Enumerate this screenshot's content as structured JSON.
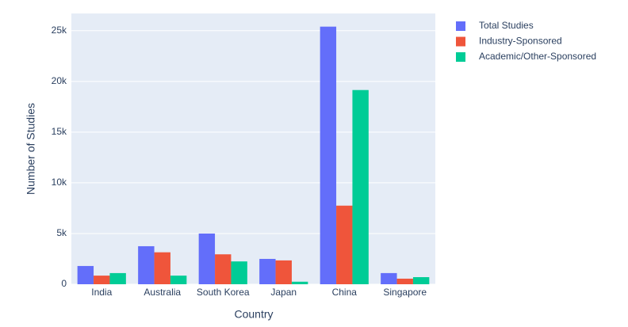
{
  "chart_data": {
    "type": "bar",
    "x_label": "Country",
    "y_label": "Number of Studies",
    "categories": [
      "India",
      "Australia",
      "South Korea",
      "Japan",
      "China",
      "Singapore"
    ],
    "series": [
      {
        "name": "Total Studies",
        "color": "#636efa",
        "values": [
          1800,
          3750,
          5000,
          2500,
          25400,
          1100
        ]
      },
      {
        "name": "Industry-Sponsored",
        "color": "#ef553b",
        "values": [
          850,
          3150,
          2950,
          2350,
          7750,
          550
        ]
      },
      {
        "name": "Academic/Other-Sponsored",
        "color": "#00cc96",
        "values": [
          1100,
          850,
          2250,
          250,
          19150,
          700
        ]
      }
    ],
    "ylim": [
      0,
      26700
    ],
    "yticks": [
      0,
      {
        "value": 5000,
        "label": "5k"
      },
      {
        "value": 10000,
        "label": "10k"
      },
      {
        "value": 15000,
        "label": "15k"
      },
      {
        "value": 20000,
        "label": "20k"
      },
      {
        "value": 25000,
        "label": "25k"
      }
    ],
    "grid": true
  }
}
